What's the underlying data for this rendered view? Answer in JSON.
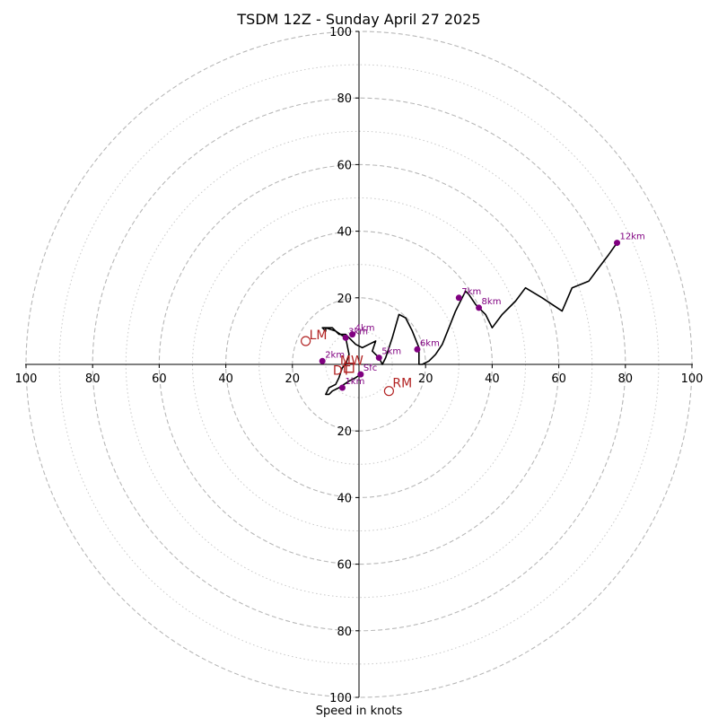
{
  "chart_data": {
    "type": "hodograph",
    "title": "TSDM 12Z - Sunday April 27 2025",
    "xlabel": "Speed in knots",
    "xlim": [
      -100,
      100
    ],
    "ylim": [
      -100,
      100
    ],
    "rings": {
      "major": [
        20,
        40,
        60,
        80,
        100
      ],
      "minor": [
        10,
        30,
        50,
        70,
        90
      ]
    },
    "tick_labels": {
      "x": [
        "100",
        "80",
        "60",
        "40",
        "20",
        "20",
        "40",
        "60",
        "80",
        "100"
      ],
      "y": [
        "100",
        "80",
        "60",
        "40",
        "20",
        "20",
        "40",
        "60",
        "80",
        "100"
      ]
    },
    "trace_color": "#000000",
    "height_marker_color": "#800080",
    "motion_color": "#b22222",
    "series": [
      {
        "x": [
          0.5,
          -1,
          -3,
          -6,
          -8,
          -9,
          -10,
          -9,
          -7,
          -6,
          -5,
          -4,
          -3,
          -4,
          -7,
          -10,
          -10,
          -11,
          -9,
          -8,
          -7,
          -6,
          -5,
          -4,
          -3,
          -1,
          1,
          3,
          5,
          4,
          6,
          7,
          8,
          10,
          12,
          14,
          16,
          18,
          18,
          19,
          21,
          23,
          25,
          27,
          29,
          30,
          31,
          32,
          33,
          35,
          36,
          38,
          40,
          43,
          47,
          50,
          55,
          61,
          64,
          69,
          72,
          75,
          77.5
        ],
        "y": [
          -3,
          -4,
          -5,
          -7,
          -8,
          -9,
          -9,
          -7,
          -6,
          -4,
          -1,
          0,
          3,
          8,
          10,
          11,
          10,
          11,
          11,
          11,
          10,
          9,
          9,
          9,
          8,
          6,
          5,
          6,
          7,
          4,
          2,
          0,
          2,
          8,
          15,
          14,
          10,
          5,
          0,
          0,
          1,
          3,
          6,
          11,
          16,
          18,
          20,
          22,
          21,
          18,
          17,
          15,
          11,
          15,
          19,
          23,
          20,
          16,
          23,
          25,
          29,
          33,
          36.5
        ]
      }
    ],
    "height_markers": [
      {
        "label": "Sfc",
        "x": 0.5,
        "y": -3
      },
      {
        "label": "1km",
        "x": -5,
        "y": -7
      },
      {
        "label": "2km",
        "x": -11,
        "y": 1
      },
      {
        "label": "3km",
        "x": -4,
        "y": 8
      },
      {
        "label": "4km",
        "x": -2,
        "y": 9
      },
      {
        "label": "5km",
        "x": 6,
        "y": 2
      },
      {
        "label": "6km",
        "x": 17.5,
        "y": 4.5
      },
      {
        "label": "7km",
        "x": 30,
        "y": 20
      },
      {
        "label": "8km",
        "x": 36,
        "y": 17
      },
      {
        "label": "12km",
        "x": 77.5,
        "y": 36.5
      }
    ],
    "storm_motion": [
      {
        "label": "LM",
        "x": -16,
        "y": 7,
        "marker": "circle"
      },
      {
        "label": "RM",
        "x": 9,
        "y": -8,
        "marker": "circle"
      },
      {
        "label": "MW",
        "x": -3,
        "y": -1,
        "marker": "square"
      },
      {
        "label": "DT",
        "x": -3,
        "y": -1,
        "marker": "square"
      }
    ]
  }
}
